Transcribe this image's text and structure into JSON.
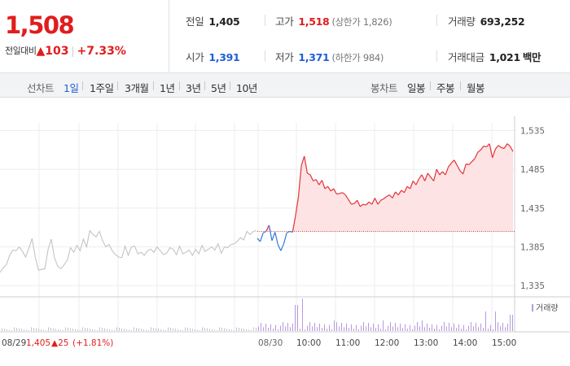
{
  "summary": {
    "current_price": "1,508",
    "change_label": "전일대비",
    "change_arrow": "▲",
    "change_amount": "103",
    "change_rate": "+7.33%",
    "prev_close": {
      "label": "전일",
      "value": "1,405"
    },
    "open": {
      "label": "시가",
      "value": "1,391"
    },
    "high": {
      "label": "고가",
      "value": "1,518",
      "sub": "(상한가 1,826)"
    },
    "low": {
      "label": "저가",
      "value": "1,371",
      "sub": "(하한가 984)"
    },
    "volume": {
      "label": "거래량",
      "value": "693,252"
    },
    "amount": {
      "label": "거래대금",
      "value": "1,021",
      "unit": "백만"
    }
  },
  "tabs": {
    "line_label": "선차트",
    "line_tabs": [
      "1일",
      "1주일",
      "3개월",
      "1년",
      "3년",
      "5년",
      "10년"
    ],
    "active_line_tab": "1일",
    "candle_label": "봉차트",
    "candle_tabs": [
      "일봉",
      "주봉",
      "월봉"
    ]
  },
  "chart": {
    "prev_day_info": "08/29",
    "prev_day_close": "1,405",
    "prev_day_change": "▲25",
    "prev_day_rate": "(+1.81%)",
    "volume_legend": "거래량",
    "colors": {
      "up": "#e3333a",
      "down": "#2f7ad8",
      "prev": "#c4c4c4",
      "fill": "#fde3e4",
      "volume": "#b79ae0"
    }
  },
  "chart_data": {
    "type": "line",
    "title": "",
    "y_ticks": [
      "1,535",
      "1,485",
      "1,435",
      "1,385",
      "1,335"
    ],
    "ylim": [
      1330,
      1545
    ],
    "baseline": 1405,
    "x_tick_labels": [
      "08/29",
      "08/30",
      "10:00",
      "11:00",
      "12:00",
      "13:00",
      "14:00",
      "15:00"
    ],
    "series": [
      {
        "period": "08/29",
        "color": "gray",
        "values": [
          1352,
          1358,
          1362,
          1374,
          1381,
          1380,
          1385,
          1379,
          1372,
          1383,
          1396,
          1372,
          1355,
          1356,
          1357,
          1382,
          1395,
          1371,
          1360,
          1357,
          1362,
          1368,
          1384,
          1378,
          1387,
          1380,
          1395,
          1385,
          1406,
          1401,
          1398,
          1405,
          1393,
          1385,
          1388,
          1380,
          1375,
          1372,
          1371,
          1386,
          1374,
          1385,
          1386,
          1376,
          1378,
          1374,
          1380,
          1382,
          1378,
          1385,
          1380,
          1375,
          1377,
          1384,
          1382,
          1375,
          1386,
          1376,
          1378,
          1381,
          1374,
          1382,
          1376,
          1387,
          1379,
          1382,
          1385,
          1381,
          1389,
          1377,
          1385,
          1384,
          1388,
          1389,
          1392,
          1397,
          1394,
          1405,
          1401,
          1405,
          1406
        ]
      },
      {
        "period": "08/30",
        "color": "red-blue",
        "values": [
          1396,
          1392,
          1403,
          1405,
          1413,
          1393,
          1404,
          1388,
          1380,
          1389,
          1403,
          1405,
          1404,
          1425,
          1450,
          1490,
          1502,
          1480,
          1478,
          1470,
          1472,
          1465,
          1471,
          1460,
          1463,
          1457,
          1460,
          1453,
          1454,
          1455,
          1452,
          1446,
          1440,
          1441,
          1445,
          1437,
          1440,
          1439,
          1443,
          1440,
          1448,
          1440,
          1445,
          1447,
          1450,
          1452,
          1448,
          1456,
          1452,
          1458,
          1455,
          1463,
          1460,
          1470,
          1465,
          1473,
          1478,
          1470,
          1480,
          1475,
          1470,
          1485,
          1478,
          1482,
          1478,
          1488,
          1493,
          1497,
          1490,
          1483,
          1479,
          1492,
          1491,
          1495,
          1499,
          1507,
          1510,
          1515,
          1514,
          1518,
          1500,
          1511,
          1516,
          1513,
          1512,
          1518,
          1515,
          1508
        ]
      }
    ]
  }
}
